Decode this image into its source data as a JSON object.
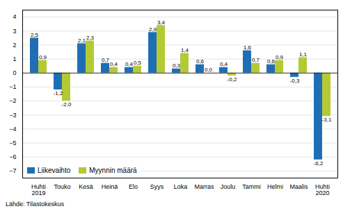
{
  "chart_data": {
    "type": "bar",
    "categories": [
      "Huhti\n2019",
      "Touko",
      "Kesä",
      "Heinä",
      "Elo",
      "Syys",
      "Loka",
      "Marras",
      "Joulu",
      "Tammi",
      "Helmi",
      "Maalis",
      "Huhti\n2020"
    ],
    "series": [
      {
        "name": "Liikevaihto",
        "color": "#1f6eb5",
        "values": [
          2.5,
          -1.2,
          2.1,
          0.7,
          0.4,
          2.9,
          0.3,
          0.6,
          0.4,
          1.6,
          0.6,
          -0.3,
          -6.2
        ],
        "value_labels": [
          "2,5",
          "-1,2",
          "2,1",
          "0,7",
          "0,4",
          "2,9",
          "0,3",
          "0,6",
          "0,4",
          "1,6",
          "0,6",
          "-0,3",
          "-6,2"
        ]
      },
      {
        "name": "Myynnin määrä",
        "color": "#b5c934",
        "values": [
          0.9,
          -2.0,
          2.3,
          0.4,
          0.5,
          3.4,
          1.4,
          0.0,
          -0.2,
          0.7,
          0.9,
          1.1,
          -3.1
        ],
        "value_labels": [
          "0,9",
          "-2,0",
          "2,3",
          "0,4",
          "0,5",
          "3,4",
          "1,4",
          "0,0",
          "-0,2",
          "0,7",
          "0,9",
          "1,1",
          "-3,1"
        ]
      }
    ],
    "ylim": [
      -7.5,
      4.5
    ],
    "yticks": [
      -7,
      -6,
      -5,
      -4,
      -3,
      -2,
      -1,
      0,
      1,
      2,
      3,
      4
    ],
    "grid": true,
    "legend": "lower left",
    "data_labels": true,
    "caption": "Lähde: Tilastokeskus"
  }
}
